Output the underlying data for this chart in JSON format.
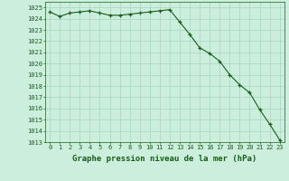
{
  "x": [
    0,
    1,
    2,
    3,
    4,
    5,
    6,
    7,
    8,
    9,
    10,
    11,
    12,
    13,
    14,
    15,
    16,
    17,
    18,
    19,
    20,
    21,
    22,
    23
  ],
  "y": [
    1024.6,
    1024.2,
    1024.5,
    1024.6,
    1024.7,
    1024.5,
    1024.3,
    1024.3,
    1024.4,
    1024.5,
    1024.6,
    1024.7,
    1024.8,
    1023.7,
    1022.6,
    1021.4,
    1020.9,
    1020.2,
    1019.0,
    1018.1,
    1017.4,
    1015.9,
    1014.6,
    1013.2
  ],
  "line_color": "#1a5c1a",
  "marker": "+",
  "marker_color": "#1a5c1a",
  "bg_color": "#cceedd",
  "grid_color": "#a8d5c2",
  "xlabel": "Graphe pression niveau de la mer (hPa)",
  "xlim": [
    -0.5,
    23.5
  ],
  "ylim": [
    1013,
    1025.5
  ],
  "yticks": [
    1013,
    1014,
    1015,
    1016,
    1017,
    1018,
    1019,
    1020,
    1021,
    1022,
    1023,
    1024,
    1025
  ],
  "xticks": [
    0,
    1,
    2,
    3,
    4,
    5,
    6,
    7,
    8,
    9,
    10,
    11,
    12,
    13,
    14,
    15,
    16,
    17,
    18,
    19,
    20,
    21,
    22,
    23
  ],
  "tick_fontsize": 5.0,
  "xlabel_fontsize": 6.5,
  "tick_color": "#1a5c1a",
  "spine_color": "#1a5c1a",
  "line_width": 0.8,
  "marker_size": 3.0
}
